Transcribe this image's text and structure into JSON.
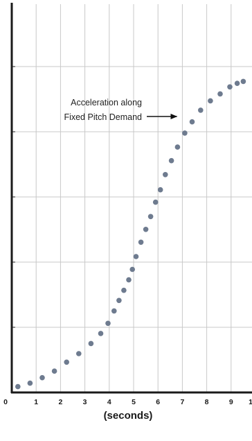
{
  "chart_data": {
    "type": "scatter",
    "title": "",
    "xlabel": "(seconds)",
    "ylabel": "",
    "x_ticks": [
      "0",
      "1",
      "2",
      "3",
      "4",
      "5",
      "6",
      "7",
      "8",
      "9",
      "1"
    ],
    "xlim": [
      0,
      10
    ],
    "ylim": [
      0,
      1
    ],
    "grid": true,
    "colors": {
      "points": "#6e7b8f",
      "grid": "#c8c8c8",
      "axis": "#1a1a1a"
    },
    "annotation": {
      "lines": [
        "Acceleration along",
        "Fixed Pitch Demand"
      ],
      "arrow_to": {
        "x": 7.0,
        "y": 0.84
      }
    },
    "series": [
      {
        "x": [
          0.25,
          0.75,
          1.25,
          1.75,
          2.25,
          2.75,
          3.25,
          3.65,
          3.95,
          4.2,
          4.4,
          4.6,
          4.8,
          4.95,
          5.1,
          5.3,
          5.5,
          5.7,
          5.9,
          6.1,
          6.3,
          6.55,
          6.8,
          7.1,
          7.4,
          7.75,
          8.15,
          8.55,
          8.95,
          9.25,
          9.5
        ],
        "y": [
          0.015,
          0.024,
          0.038,
          0.055,
          0.078,
          0.1,
          0.126,
          0.152,
          0.178,
          0.21,
          0.237,
          0.263,
          0.29,
          0.317,
          0.35,
          0.387,
          0.42,
          0.453,
          0.49,
          0.522,
          0.561,
          0.597,
          0.632,
          0.668,
          0.697,
          0.727,
          0.751,
          0.769,
          0.787,
          0.796,
          0.801
        ]
      }
    ]
  }
}
